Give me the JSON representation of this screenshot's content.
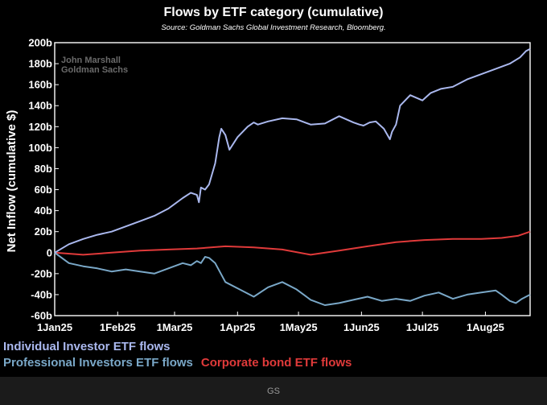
{
  "chart_data": {
    "type": "line",
    "title": "Flows by ETF category (cumulative)",
    "subtitle": "Source: Goldman Sachs Global Investment Research, Bloomberg.",
    "xlabel": "",
    "ylabel": "Net Inflow (cumulative $)",
    "ylim": [
      -60,
      200
    ],
    "yticks": [
      -60,
      -40,
      -20,
      0,
      20,
      40,
      60,
      80,
      100,
      120,
      140,
      160,
      180,
      200
    ],
    "ytick_labels": [
      "-60b",
      "-40b",
      "-20b",
      "0",
      "20b",
      "40b",
      "60b",
      "80b",
      "100b",
      "120b",
      "140b",
      "160b",
      "180b",
      "200b"
    ],
    "x_unit": "days since 1 Jan 2025",
    "xlim": [
      0,
      234
    ],
    "xticks": [
      0,
      31,
      59,
      90,
      120,
      151,
      181,
      212
    ],
    "xtick_labels": [
      "1Jan25",
      "1Feb25",
      "1Mar25",
      "1Apr25",
      "1May25",
      "1Jun25",
      "1Jul25",
      "1Aug25"
    ],
    "watermark": [
      "John Marshall",
      "Goldman Sachs"
    ],
    "series": [
      {
        "name": "Individual Investor ETF flows",
        "color": "#aab8ee",
        "x": [
          0,
          7,
          14,
          21,
          28,
          35,
          42,
          49,
          56,
          63,
          67,
          70,
          71,
          72,
          74,
          76,
          79,
          81,
          82,
          84,
          86,
          90,
          95,
          98,
          100,
          105,
          112,
          119,
          126,
          133,
          140,
          147,
          150,
          152,
          155,
          158,
          162,
          165,
          166,
          168,
          170,
          175,
          181,
          185,
          190,
          196,
          203,
          210,
          217,
          224,
          229,
          232,
          234
        ],
        "values": [
          0,
          8,
          13,
          17,
          20,
          25,
          30,
          35,
          42,
          52,
          57,
          55,
          48,
          62,
          60,
          65,
          85,
          110,
          118,
          112,
          98,
          110,
          120,
          124,
          122,
          125,
          128,
          127,
          122,
          123,
          130,
          124,
          122,
          121,
          124,
          125,
          118,
          108,
          115,
          122,
          140,
          150,
          145,
          152,
          156,
          158,
          165,
          170,
          175,
          180,
          186,
          192,
          194
        ]
      },
      {
        "name": "Professional Investors ETF flows",
        "color": "#7aa8c8",
        "x": [
          0,
          7,
          14,
          21,
          28,
          35,
          42,
          49,
          56,
          63,
          67,
          70,
          72,
          74,
          76,
          79,
          84,
          91,
          98,
          105,
          112,
          119,
          126,
          133,
          140,
          147,
          154,
          161,
          168,
          175,
          182,
          189,
          196,
          203,
          210,
          217,
          220,
          224,
          227,
          230,
          234
        ],
        "values": [
          0,
          -10,
          -13,
          -15,
          -18,
          -16,
          -18,
          -20,
          -15,
          -10,
          -12,
          -8,
          -10,
          -4,
          -5,
          -10,
          -28,
          -35,
          -42,
          -33,
          -28,
          -35,
          -45,
          -50,
          -48,
          -45,
          -42,
          -46,
          -44,
          -46,
          -41,
          -38,
          -44,
          -40,
          -38,
          -36,
          -40,
          -46,
          -48,
          -44,
          -40
        ]
      },
      {
        "name": "Corporate bond ETF flows",
        "color": "#e03a3a",
        "x": [
          0,
          14,
          28,
          42,
          56,
          70,
          84,
          98,
          112,
          126,
          140,
          154,
          168,
          182,
          196,
          210,
          220,
          228,
          234
        ],
        "values": [
          0,
          -2,
          0,
          2,
          3,
          4,
          6,
          5,
          3,
          -2,
          2,
          6,
          10,
          12,
          13,
          13,
          14,
          16,
          20
        ]
      }
    ]
  },
  "footer": {
    "credit": "GS"
  }
}
